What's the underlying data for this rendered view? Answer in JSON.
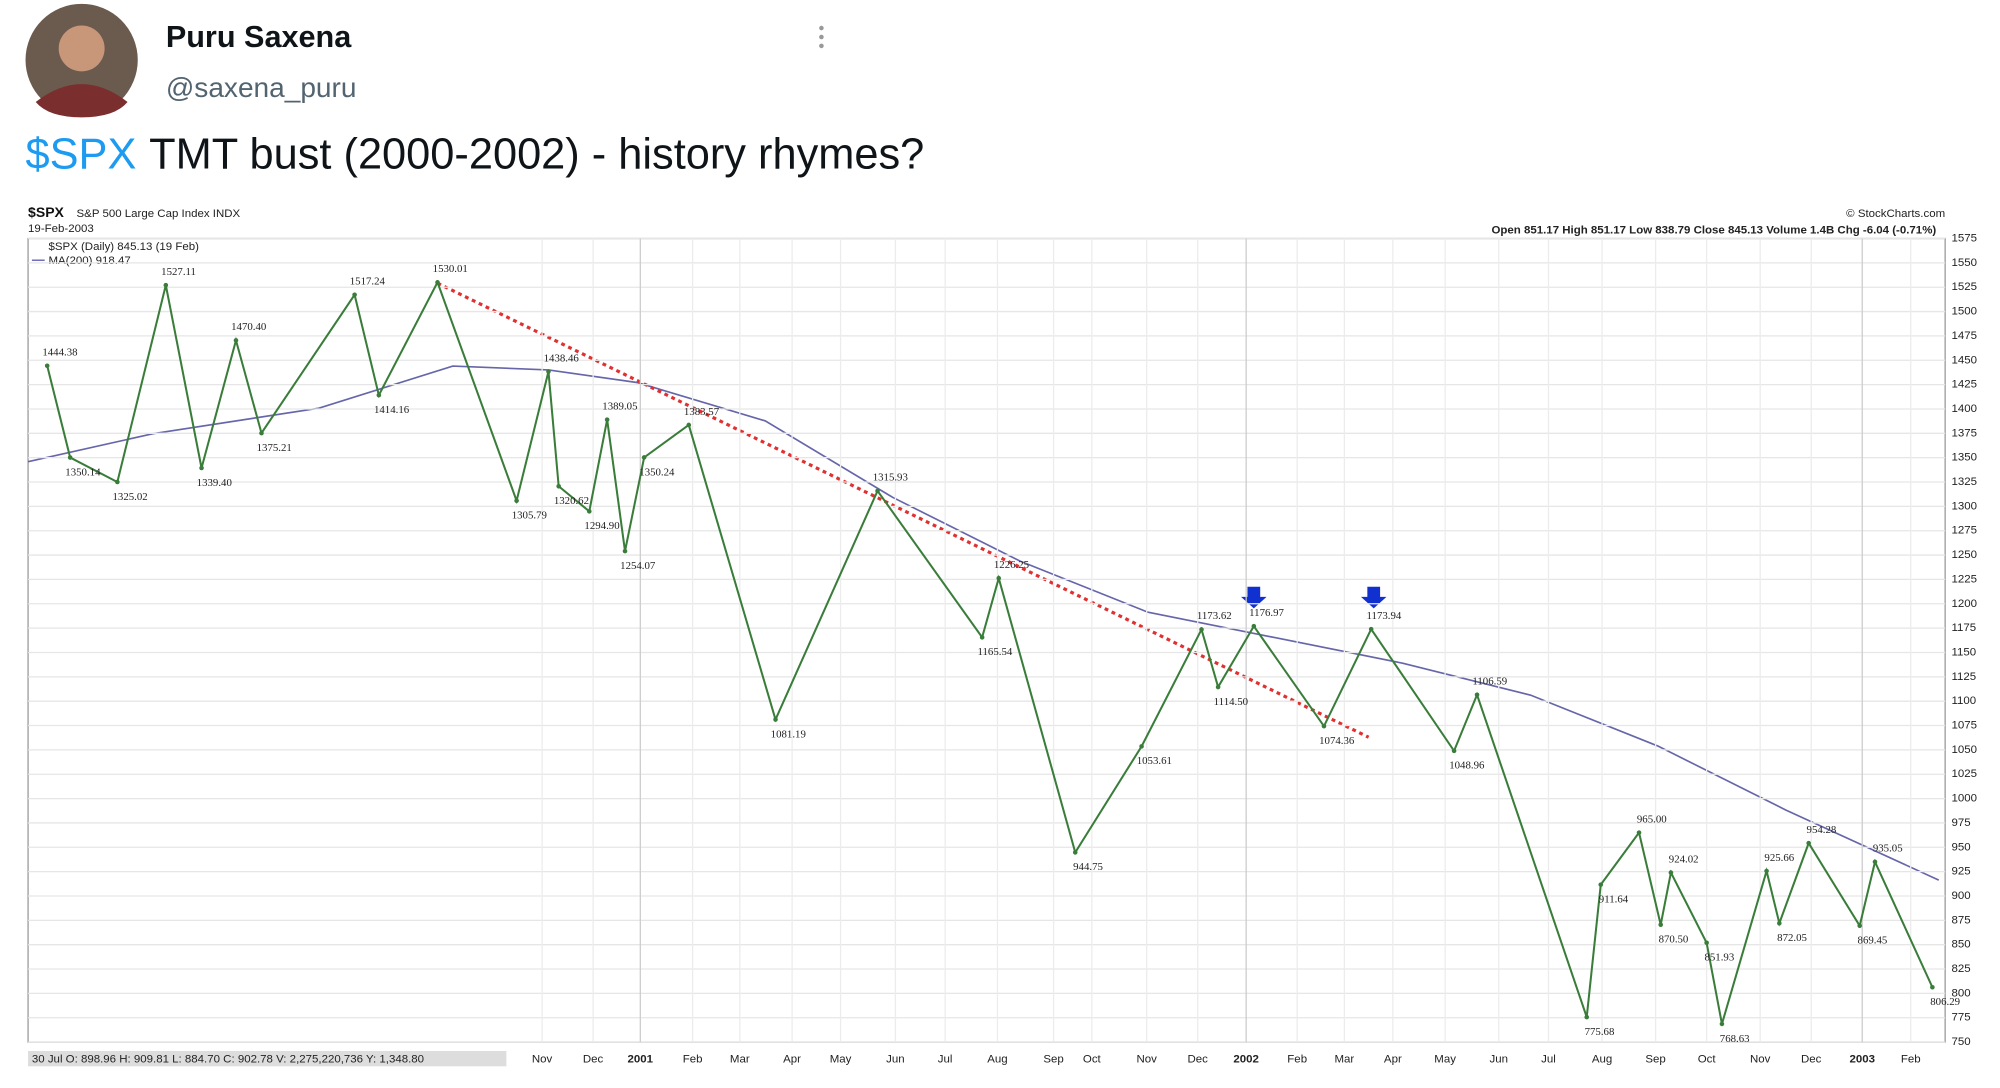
{
  "tweet": {
    "name": "Puru Saxena",
    "handle": "@saxena_puru",
    "cashtag": "$SPX",
    "text": "TMT bust (2000-2002) - history rhymes?"
  },
  "chart_data": {
    "type": "line",
    "title": "$SPX",
    "subtitle": "S&P 500 Large Cap Index INDX",
    "date": "19-Feb-2003",
    "credit": "© StockCharts.com",
    "quote": "Open 851.17  High 851.17  Low 838.79  Close 845.13  Volume 1.4B  Chg -6.04 (-0.71%)",
    "status": "30 Jul O: 898.96  H: 909.81  L: 884.70  C: 902.78  V: 2,275,220,736  Y: 1,348.80",
    "ma_legend": "MA(200) 918.47",
    "series": [
      {
        "name": "$SPX (Daily) 845.13 (19 Feb)",
        "color": "#3a7d3a",
        "values": [
          1444.38,
          1350.14,
          1325.02,
          1527.11,
          1339.4,
          1470.4,
          1375.21,
          1517.24,
          1414.16,
          1530.01,
          1305.79,
          1438.46,
          1320.62,
          1294.9,
          1389.05,
          1254.07,
          1350.24,
          1383.57,
          1081.19,
          1315.93,
          1165.54,
          1226.25,
          944.75,
          1053.61,
          1173.62,
          1114.5,
          1176.97,
          1074.36,
          1173.94,
          1048.96,
          1106.59,
          775.68,
          911.64,
          965,
          870.5,
          924.02,
          851.93,
          768.63,
          925.66,
          872.05,
          954.28,
          869.45,
          935.05,
          806.29
        ],
        "value_labels": [
          "1444.38",
          "1350.14",
          "1325.02",
          "1527.11",
          "1339.40",
          "1470.40",
          "1375.21",
          "1517.24",
          "1414.16",
          "1530.01",
          "1305.79",
          "1438.46",
          "1320.62",
          "1294.90",
          "1389.05",
          "1254.07",
          "1350.24",
          "1383.57",
          "1081.19",
          "1315.93",
          "1165.54",
          "1226.25",
          "944.75",
          "1053.61",
          "1173.62",
          "1114.50",
          "1176.97",
          "1074.36",
          "1173.94",
          "1048.96",
          "1106.59",
          "775.68",
          "911.64",
          "965.00",
          "870.50",
          "924.02",
          "851.93",
          "768.63",
          "925.66",
          "872.05",
          "954.28",
          "869.45",
          "935.05",
          "806.29"
        ]
      }
    ],
    "xtick_labels": [
      "Nov",
      "Dec",
      "2001",
      "Feb",
      "Mar",
      "Apr",
      "May",
      "Jun",
      "Jul",
      "Aug",
      "Sep",
      "Oct",
      "Nov",
      "Dec",
      "2002",
      "Feb",
      "Mar",
      "Apr",
      "May",
      "Jun",
      "Jul",
      "Aug",
      "Sep",
      "Oct",
      "Nov",
      "Dec",
      "2003",
      "Feb"
    ],
    "ylim": [
      750,
      1575
    ],
    "yticks": [
      750,
      775,
      800,
      825,
      850,
      875,
      900,
      925,
      950,
      975,
      1000,
      1025,
      1050,
      1075,
      1100,
      1125,
      1150,
      1175,
      1200,
      1225,
      1250,
      1275,
      1300,
      1325,
      1350,
      1375,
      1400,
      1425,
      1450,
      1475,
      1500,
      1525,
      1550,
      1575
    ],
    "grid": true
  }
}
